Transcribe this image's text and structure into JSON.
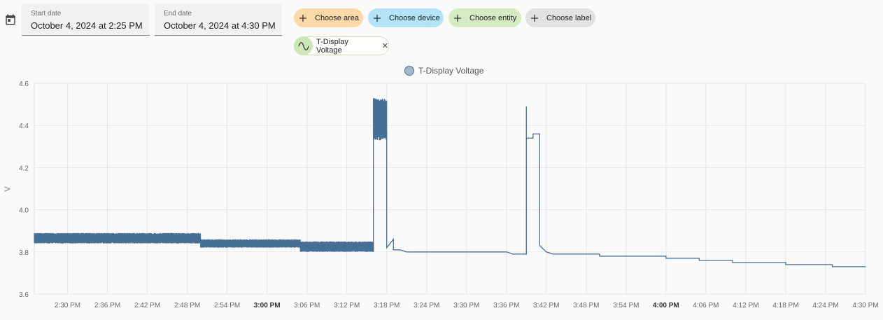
{
  "date_picker": {
    "start": {
      "label": "Start date",
      "value": "October 4, 2024 at 2:25 PM"
    },
    "end": {
      "label": "End date",
      "value": "October 4, 2024 at 4:30 PM"
    }
  },
  "target_chips": {
    "area": "Choose area",
    "device": "Choose device",
    "entity": "Choose entity",
    "label": "Choose label"
  },
  "selected_entity": {
    "name": "T-Display Voltage",
    "icon": "sine-wave-icon"
  },
  "colors": {
    "series": "#466f96",
    "area_chip": "#fdd9aa",
    "device_chip": "#b3e3f9",
    "entity_chip": "#d5ebc2",
    "label_chip": "#e2e2e2"
  },
  "chart_data": {
    "type": "line",
    "ylabel": "V",
    "ylim": [
      3.6,
      4.6
    ],
    "yticks": [
      "3.6",
      "3.8",
      "4.0",
      "4.2",
      "4.4",
      "4.6"
    ],
    "xlim": [
      "2:25 PM",
      "4:30 PM"
    ],
    "xticks": [
      "2:30 PM",
      "2:36 PM",
      "2:42 PM",
      "2:48 PM",
      "2:54 PM",
      "3:00 PM",
      "3:06 PM",
      "3:12 PM",
      "3:18 PM",
      "3:24 PM",
      "3:30 PM",
      "3:36 PM",
      "3:42 PM",
      "3:48 PM",
      "3:54 PM",
      "4:00 PM",
      "4:06 PM",
      "4:12 PM",
      "4:18 PM",
      "4:24 PM",
      "4:30 PM"
    ],
    "bold_ticks": [
      "3:00 PM",
      "4:00 PM"
    ],
    "grid": true,
    "legend_placement": "top-center",
    "series": [
      {
        "name": "T-Display Voltage",
        "style": "step",
        "noise_bands": [
          {
            "from": "2:25 PM",
            "to": "2:50 PM",
            "low": 3.84,
            "high": 3.89
          },
          {
            "from": "2:50 PM",
            "to": "3:05 PM",
            "low": 3.82,
            "high": 3.86
          },
          {
            "from": "3:05 PM",
            "to": "3:16 PM",
            "low": 3.8,
            "high": 3.85
          },
          {
            "from": "3:16 PM",
            "to": "3:18 PM",
            "low": 4.33,
            "high": 4.53
          }
        ],
        "points": [
          [
            "3:16 PM",
            3.8
          ],
          [
            "3:16 PM",
            4.53
          ],
          [
            "3:16 PM",
            4.33
          ],
          [
            "3:17 PM",
            4.51
          ],
          [
            "3:17 PM",
            4.38
          ],
          [
            "3:17 PM",
            4.37
          ],
          [
            "3:18 PM",
            4.37
          ],
          [
            "3:18 PM",
            3.86
          ],
          [
            "3:18 PM",
            3.82
          ],
          [
            "3:19 PM",
            3.86
          ],
          [
            "3:19 PM",
            3.81
          ],
          [
            "3:20 PM",
            3.81
          ],
          [
            "3:21 PM",
            3.8
          ],
          [
            "3:36 PM",
            3.8
          ],
          [
            "3:37 PM",
            3.79
          ],
          [
            "3:39 PM",
            3.79
          ],
          [
            "3:39 PM",
            4.36
          ],
          [
            "3:39 PM",
            4.49
          ],
          [
            "3:39 PM",
            4.34
          ],
          [
            "3:40 PM",
            4.34
          ],
          [
            "3:40 PM",
            4.36
          ],
          [
            "3:41 PM",
            4.36
          ],
          [
            "3:41 PM",
            3.86
          ],
          [
            "3:41 PM",
            3.83
          ],
          [
            "3:42 PM",
            3.8
          ],
          [
            "3:43 PM",
            3.79
          ],
          [
            "3:50 PM",
            3.79
          ],
          [
            "3:50 PM",
            3.78
          ],
          [
            "4:00 PM",
            3.78
          ],
          [
            "4:00 PM",
            3.77
          ],
          [
            "4:05 PM",
            3.77
          ],
          [
            "4:05 PM",
            3.76
          ],
          [
            "4:10 PM",
            3.76
          ],
          [
            "4:10 PM",
            3.75
          ],
          [
            "4:18 PM",
            3.75
          ],
          [
            "4:18 PM",
            3.74
          ],
          [
            "4:25 PM",
            3.74
          ],
          [
            "4:25 PM",
            3.73
          ],
          [
            "4:30 PM",
            3.73
          ]
        ]
      }
    ]
  }
}
